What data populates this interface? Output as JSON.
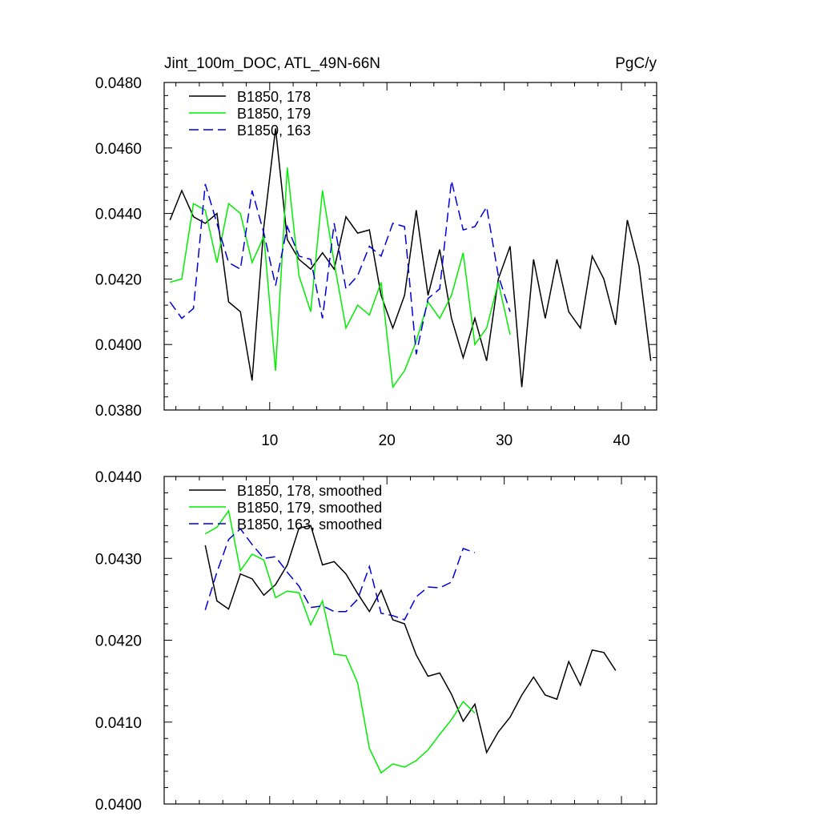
{
  "header": {
    "title": "Jint_100m_DOC, ATL_49N-66N",
    "units": "PgC/y"
  },
  "colors": {
    "s178": "#000000",
    "s179": "#00ee00",
    "s163": "#0000dd"
  },
  "chart_data": [
    {
      "type": "line",
      "title": "Jint_100m_DOC, ATL_49N-66N",
      "units": "PgC/y",
      "xlabel": "",
      "ylabel": "",
      "xlim": [
        1,
        43
      ],
      "ylim": [
        0.038,
        0.048
      ],
      "xticks": [
        10,
        20,
        30,
        40
      ],
      "xtick_labels": [
        "10",
        "20",
        "30",
        "40"
      ],
      "yticks": [
        0.038,
        0.04,
        0.042,
        0.044,
        0.046,
        0.048
      ],
      "ytick_labels": [
        "0.0380",
        "0.0400",
        "0.0420",
        "0.0440",
        "0.0460",
        "0.0480"
      ],
      "legend_position": "top-left",
      "series": [
        {
          "name": "B1850, 178",
          "style": "solid",
          "x": [
            1.5,
            2.5,
            3.5,
            4.5,
            5.5,
            6.5,
            7.5,
            8.5,
            9.5,
            10.5,
            11.5,
            12.5,
            13.5,
            14.5,
            15.5,
            16.5,
            17.5,
            18.5,
            19.5,
            20.5,
            21.5,
            22.5,
            23.5,
            24.5,
            25.5,
            26.5,
            27.5,
            28.5,
            29.5,
            30.5,
            31.5,
            32.5,
            33.5,
            34.5,
            35.5,
            36.5,
            37.5,
            38.5,
            39.5,
            40.5,
            41.5,
            42.5
          ],
          "values": [
            0.0438,
            0.0447,
            0.0439,
            0.0437,
            0.044,
            0.0413,
            0.041,
            0.0389,
            0.0436,
            0.0466,
            0.0432,
            0.0426,
            0.0423,
            0.0428,
            0.0423,
            0.0439,
            0.0434,
            0.0435,
            0.0415,
            0.0405,
            0.0415,
            0.0441,
            0.0415,
            0.0429,
            0.0408,
            0.0396,
            0.0408,
            0.0395,
            0.042,
            0.043,
            0.0387,
            0.0426,
            0.0408,
            0.0426,
            0.041,
            0.0405,
            0.0427,
            0.042,
            0.0406,
            0.0438,
            0.0424,
            0.0395
          ]
        },
        {
          "name": "B1850, 179",
          "style": "solid",
          "x": [
            1.5,
            2.5,
            3.5,
            4.5,
            5.5,
            6.5,
            7.5,
            8.5,
            9.5,
            10.5,
            11.5,
            12.5,
            13.5,
            14.5,
            15.5,
            16.5,
            17.5,
            18.5,
            19.5,
            20.5,
            21.5,
            22.5,
            23.5,
            24.5,
            25.5,
            26.5,
            27.5,
            28.5,
            29.5,
            30.5
          ],
          "values": [
            0.0419,
            0.042,
            0.0443,
            0.0441,
            0.0425,
            0.0443,
            0.044,
            0.0425,
            0.0433,
            0.0392,
            0.0454,
            0.0421,
            0.041,
            0.0447,
            0.0425,
            0.0405,
            0.0412,
            0.0409,
            0.0419,
            0.0387,
            0.0392,
            0.0401,
            0.0413,
            0.0408,
            0.0415,
            0.0428,
            0.04,
            0.0405,
            0.0419,
            0.0403
          ]
        },
        {
          "name": "B1850, 163",
          "style": "dashed",
          "x": [
            1.5,
            2.5,
            3.5,
            4.5,
            5.5,
            6.5,
            7.5,
            8.5,
            9.5,
            10.5,
            11.5,
            12.5,
            13.5,
            14.5,
            15.5,
            16.5,
            17.5,
            18.5,
            19.5,
            20.5,
            21.5,
            22.5,
            23.5,
            24.5,
            25.5,
            26.5,
            27.5,
            28.5,
            29.5,
            30.5
          ],
          "values": [
            0.0413,
            0.0408,
            0.0411,
            0.0449,
            0.0437,
            0.0425,
            0.0423,
            0.0447,
            0.0434,
            0.0418,
            0.0436,
            0.0427,
            0.0426,
            0.0408,
            0.0437,
            0.0417,
            0.0421,
            0.043,
            0.0427,
            0.0437,
            0.0436,
            0.0397,
            0.0414,
            0.0417,
            0.045,
            0.0435,
            0.0436,
            0.0442,
            0.0421,
            0.041
          ]
        }
      ]
    },
    {
      "type": "line",
      "xlabel": "",
      "ylabel": "",
      "xlim": [
        1,
        43
      ],
      "ylim": [
        0.04,
        0.044
      ],
      "xticks": [
        10,
        20,
        30,
        40
      ],
      "yticks": [
        0.04,
        0.041,
        0.042,
        0.043,
        0.044
      ],
      "ytick_labels": [
        "0.0400",
        "0.0410",
        "0.0420",
        "0.0430",
        "0.0440"
      ],
      "legend_position": "top-left",
      "series": [
        {
          "name": "B1850, 178, smoothed",
          "style": "solid",
          "x": [
            4.5,
            5.5,
            6.5,
            7.5,
            8.5,
            9.5,
            10.5,
            11.5,
            12.5,
            13.5,
            14.5,
            15.5,
            16.5,
            17.5,
            18.5,
            19.5,
            20.5,
            21.5,
            22.5,
            23.5,
            24.5,
            25.5,
            26.5,
            27.5,
            28.5,
            29.5,
            30.5,
            31.5,
            32.5,
            33.5,
            34.5,
            35.5,
            36.5,
            37.5,
            38.5,
            39.5
          ],
          "values": [
            0.04316,
            0.04248,
            0.04238,
            0.04281,
            0.04275,
            0.04255,
            0.04268,
            0.04292,
            0.04337,
            0.0434,
            0.04292,
            0.04296,
            0.04281,
            0.04257,
            0.04235,
            0.04261,
            0.04225,
            0.0422,
            0.04182,
            0.04156,
            0.0416,
            0.04134,
            0.04101,
            0.04122,
            0.04063,
            0.04088,
            0.04106,
            0.04133,
            0.04155,
            0.04133,
            0.04128,
            0.04174,
            0.04145,
            0.04188,
            0.04185,
            0.04163
          ]
        },
        {
          "name": "B1850, 179, smoothed",
          "style": "solid",
          "x": [
            4.5,
            5.5,
            6.5,
            7.5,
            8.5,
            9.5,
            10.5,
            11.5,
            12.5,
            13.5,
            14.5,
            15.5,
            16.5,
            17.5,
            18.5,
            19.5,
            20.5,
            21.5,
            22.5,
            23.5,
            24.5,
            25.5,
            26.5,
            27.5
          ],
          "values": [
            0.0433,
            0.04338,
            0.04358,
            0.04285,
            0.04305,
            0.04298,
            0.04252,
            0.0426,
            0.04258,
            0.04219,
            0.04248,
            0.04183,
            0.04181,
            0.04148,
            0.04068,
            0.04038,
            0.04049,
            0.04045,
            0.04053,
            0.04066,
            0.04085,
            0.04103,
            0.04125,
            0.04111
          ]
        },
        {
          "name": "B1850, 163, smoothed",
          "style": "dashed",
          "x": [
            4.5,
            5.5,
            6.5,
            7.5,
            8.5,
            9.5,
            10.5,
            11.5,
            12.5,
            13.5,
            14.5,
            15.5,
            16.5,
            17.5,
            18.5,
            19.5,
            20.5,
            21.5,
            22.5,
            23.5,
            24.5,
            25.5,
            26.5,
            27.5
          ],
          "values": [
            0.04237,
            0.04283,
            0.04323,
            0.04336,
            0.04317,
            0.043,
            0.04302,
            0.04283,
            0.04266,
            0.0424,
            0.04242,
            0.04235,
            0.04235,
            0.0425,
            0.0429,
            0.04233,
            0.0423,
            0.04225,
            0.04253,
            0.04265,
            0.04264,
            0.04271,
            0.04312,
            0.04307
          ]
        }
      ]
    }
  ]
}
